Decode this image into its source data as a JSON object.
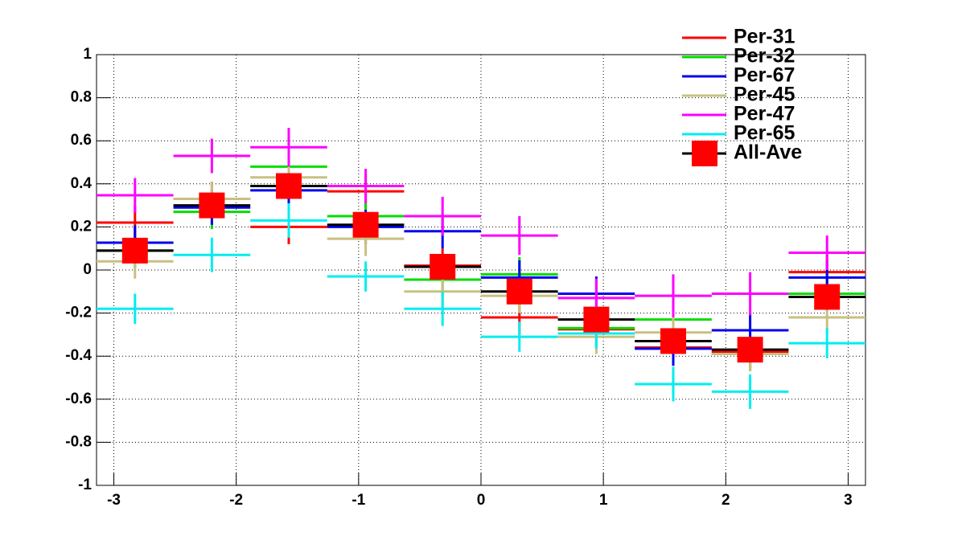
{
  "chart_data": {
    "type": "histogram",
    "bins": [
      -3.1416,
      -2.5133,
      -1.885,
      -1.2566,
      -0.6283,
      0,
      0.6283,
      1.2566,
      1.885,
      2.5133,
      3.1416
    ],
    "xlim": [
      -3.1416,
      3.1416
    ],
    "xticks": [
      -3,
      -2,
      -1,
      0,
      1,
      2,
      3
    ],
    "ylim": [
      -1,
      1
    ],
    "yticks": [
      -1,
      -0.8,
      -0.6,
      -0.4,
      -0.2,
      0,
      0.2,
      0.4,
      0.6,
      0.8,
      1
    ],
    "grid": true,
    "legend": "top-right",
    "series": [
      {
        "name": "Per-31",
        "color": "#ff0000",
        "values": [
          0.22,
          0.33,
          0.2,
          0.365,
          0.02,
          -0.22,
          -0.275,
          -0.36,
          -0.38,
          -0.01
        ],
        "errors": [
          0.08,
          0.08,
          0.08,
          0.08,
          0.08,
          0.08,
          0.08,
          0.08,
          0.08,
          0.08
        ]
      },
      {
        "name": "Per-32",
        "color": "#00dd00",
        "values": [
          0.09,
          0.27,
          0.48,
          0.25,
          -0.045,
          -0.02,
          -0.27,
          -0.23,
          -0.39,
          -0.11
        ],
        "errors": [
          0.08,
          0.08,
          0.08,
          0.08,
          0.08,
          0.08,
          0.08,
          0.08,
          0.08,
          0.08
        ]
      },
      {
        "name": "Per-67",
        "color": "#0000ee",
        "values": [
          0.127,
          0.29,
          0.37,
          0.2,
          0.18,
          -0.035,
          -0.11,
          -0.365,
          -0.28,
          -0.035
        ],
        "errors": [
          0.08,
          0.08,
          0.08,
          0.08,
          0.08,
          0.08,
          0.08,
          0.08,
          0.08,
          0.08
        ]
      },
      {
        "name": "Per-45",
        "color": "#c8c080",
        "values": [
          0.04,
          0.33,
          0.43,
          0.145,
          -0.1,
          -0.12,
          -0.31,
          -0.29,
          -0.39,
          -0.22
        ],
        "errors": [
          0.08,
          0.08,
          0.08,
          0.08,
          0.08,
          0.08,
          0.08,
          0.08,
          0.08,
          0.08
        ]
      },
      {
        "name": "Per-47",
        "color": "#ff00ff",
        "values": [
          0.347,
          0.53,
          0.57,
          0.39,
          0.25,
          0.16,
          -0.13,
          -0.12,
          -0.11,
          0.08
        ],
        "errors": [
          0.08,
          0.08,
          0.09,
          0.08,
          0.09,
          0.09,
          0.09,
          0.1,
          0.1,
          0.08
        ]
      },
      {
        "name": "Per-65",
        "color": "#00eeee",
        "values": [
          -0.18,
          0.07,
          0.23,
          -0.03,
          -0.18,
          -0.31,
          -0.295,
          -0.53,
          -0.565,
          -0.34
        ],
        "errors": [
          0.07,
          0.08,
          0.08,
          0.07,
          0.08,
          0.07,
          0.07,
          0.08,
          0.08,
          0.07
        ]
      },
      {
        "name": "All-Ave",
        "color": "#000000",
        "marker_color": "#ff0000",
        "values": [
          0.09,
          0.3,
          0.39,
          0.21,
          0.015,
          -0.1,
          -0.23,
          -0.33,
          -0.37,
          -0.125
        ],
        "errors": [
          0.03,
          0.03,
          0.03,
          0.03,
          0.03,
          0.03,
          0.03,
          0.03,
          0.03,
          0.03
        ]
      }
    ]
  }
}
